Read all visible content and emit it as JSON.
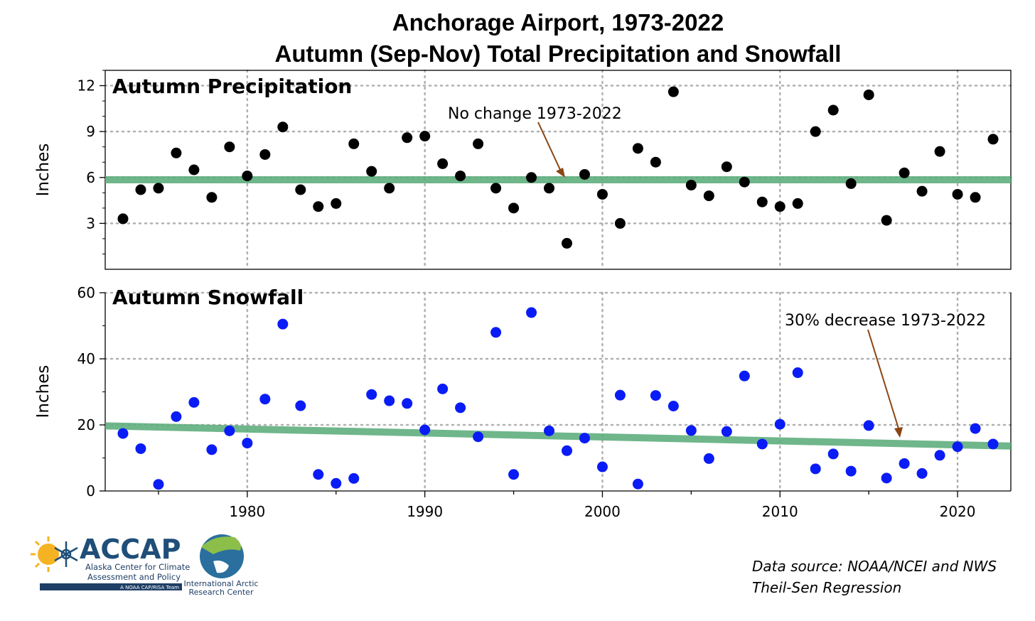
{
  "title_line1": "Anchorage Airport, 1973-2022",
  "title_line2": "Autumn (Sep-Nov) Total Precipitation and Snowfall",
  "source_line1": "Data source: NOAA/NCEI and NWS",
  "source_line2": "Theil-Sen Regression",
  "logos": {
    "accap_name": "ACCAP",
    "accap_line1": "Alaska Center for Climate",
    "accap_line2": "Assessment and Policy",
    "accap_band": "A NOAA CAP/RISA Team",
    "iarc_line1": "International Arctic",
    "iarc_line2": "Research Center"
  },
  "colors": {
    "precip_points": "#000000",
    "snow_points": "#0a1cf5",
    "trend_line": "#5fae7e",
    "arrow": "#8b4513",
    "grid": "#b0b0b0"
  },
  "chart_data": [
    {
      "type": "scatter",
      "title": "Autumn Precipitation",
      "ylabel": "Inches",
      "xlim": [
        1972,
        2023
      ],
      "ylim": [
        0,
        13
      ],
      "yticks": [
        3,
        6,
        9,
        12
      ],
      "xticks": [
        1980,
        1990,
        2000,
        2010,
        2020
      ],
      "grid": true,
      "series": [
        {
          "x": [
            1973,
            1974,
            1975,
            1976,
            1977,
            1978,
            1979,
            1980,
            1981,
            1982,
            1983,
            1984,
            1985,
            1986,
            1987,
            1988,
            1989,
            1990,
            1991,
            1992,
            1993,
            1994,
            1995,
            1996,
            1997,
            1998,
            1999,
            2000,
            2001,
            2002,
            2003,
            2004,
            2005,
            2006,
            2007,
            2008,
            2009,
            2010,
            2011,
            2012,
            2013,
            2014,
            2015,
            2016,
            2017,
            2018,
            2019,
            2020,
            2021,
            2022
          ],
          "y": [
            3.3,
            5.2,
            5.3,
            7.6,
            6.5,
            4.7,
            8.0,
            6.1,
            7.5,
            9.3,
            5.2,
            4.1,
            4.3,
            8.2,
            6.4,
            5.3,
            8.6,
            8.7,
            6.9,
            6.1,
            8.2,
            5.3,
            4.0,
            6.0,
            5.3,
            1.7,
            6.2,
            4.9,
            3.0,
            7.9,
            7.0,
            11.6,
            5.5,
            4.8,
            6.7,
            5.7,
            4.4,
            4.1,
            4.3,
            9.0,
            10.4,
            5.6,
            11.4,
            3.2,
            6.3,
            5.1,
            7.7,
            4.9,
            4.7,
            8.5
          ]
        }
      ],
      "trend": {
        "start": [
          1972,
          5.85
        ],
        "end": [
          2023,
          5.85
        ]
      },
      "annotation": "No change 1973-2022"
    },
    {
      "type": "scatter",
      "title": "Autumn Snowfall",
      "ylabel": "Inches",
      "xlim": [
        1972,
        2023
      ],
      "ylim": [
        0,
        60
      ],
      "yticks": [
        0,
        20,
        40,
        60
      ],
      "xticks": [
        1980,
        1990,
        2000,
        2010,
        2020
      ],
      "grid": true,
      "series": [
        {
          "x": [
            1973,
            1974,
            1975,
            1976,
            1977,
            1978,
            1979,
            1980,
            1981,
            1982,
            1983,
            1984,
            1985,
            1986,
            1987,
            1988,
            1989,
            1990,
            1991,
            1992,
            1993,
            1994,
            1995,
            1996,
            1997,
            1998,
            1999,
            2000,
            2001,
            2002,
            2003,
            2004,
            2005,
            2006,
            2007,
            2008,
            2009,
            2010,
            2011,
            2012,
            2013,
            2014,
            2015,
            2016,
            2017,
            2018,
            2019,
            2020,
            2021,
            2022
          ],
          "y": [
            17.4,
            12.8,
            2.0,
            22.5,
            26.8,
            12.5,
            18.2,
            14.5,
            27.8,
            50.5,
            25.8,
            5.0,
            2.3,
            3.8,
            29.2,
            27.3,
            26.5,
            18.5,
            30.9,
            25.2,
            16.4,
            48.0,
            5.0,
            54.0,
            18.2,
            12.2,
            16.0,
            7.3,
            29.0,
            2.1,
            28.9,
            25.7,
            18.3,
            9.8,
            18.0,
            34.8,
            14.2,
            20.2,
            35.8,
            6.7,
            11.2,
            6.0,
            19.8,
            3.9,
            8.3,
            5.3,
            10.8,
            13.4,
            18.9,
            14.2
          ]
        }
      ],
      "trend": {
        "start": [
          1972,
          19.7
        ],
        "end": [
          2023,
          13.6
        ]
      },
      "annotation": "30% decrease 1973-2022"
    }
  ]
}
